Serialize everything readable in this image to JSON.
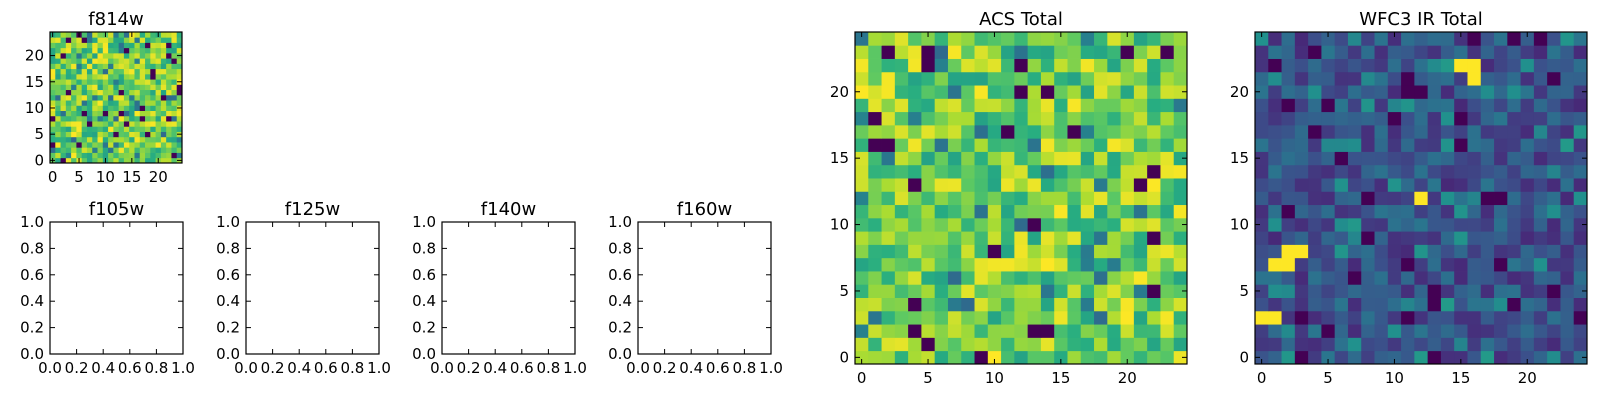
{
  "chart_data": [
    {
      "id": "f814w",
      "type": "heatmap",
      "title": "f814w",
      "xlabel": "",
      "ylabel": "",
      "xlim": [
        -0.5,
        24.5
      ],
      "ylim": [
        -0.5,
        24.5
      ],
      "xticks": [
        0,
        5,
        10,
        15,
        20
      ],
      "xtick_labels": [
        "0",
        "5",
        "10",
        "15",
        "20"
      ],
      "yticks": [
        0,
        5,
        10,
        15,
        20
      ],
      "ytick_labels": [
        "0",
        "5",
        "10",
        "15",
        "20"
      ],
      "grid": false,
      "legend": "none",
      "colormap": "viridis",
      "data_shape": [
        25,
        25
      ],
      "data_summary": "random pixel noise, mostly high (yellow-green) values with sparse low (dark purple) pixels",
      "seed": 814,
      "profile": "high"
    },
    {
      "id": "f105w",
      "type": "heatmap",
      "title": "f105w",
      "xlabel": "",
      "ylabel": "",
      "xlim": [
        0.0,
        1.0
      ],
      "ylim": [
        0.0,
        1.0
      ],
      "xticks": [
        0.0,
        0.2,
        0.4,
        0.6,
        0.8,
        1.0
      ],
      "xtick_labels": [
        "0.0",
        "0.2",
        "0.4",
        "0.6",
        "0.8",
        "1.0"
      ],
      "yticks": [
        0.0,
        0.2,
        0.4,
        0.6,
        0.8,
        1.0
      ],
      "ytick_labels": [
        "0.0",
        "0.2",
        "0.4",
        "0.6",
        "0.8",
        "1.0"
      ],
      "grid": false,
      "legend": "none",
      "empty": true
    },
    {
      "id": "f125w",
      "type": "heatmap",
      "title": "f125w",
      "xlabel": "",
      "ylabel": "",
      "xlim": [
        0.0,
        1.0
      ],
      "ylim": [
        0.0,
        1.0
      ],
      "xticks": [
        0.0,
        0.2,
        0.4,
        0.6,
        0.8,
        1.0
      ],
      "xtick_labels": [
        "0.0",
        "0.2",
        "0.4",
        "0.6",
        "0.8",
        "1.0"
      ],
      "yticks": [
        0.0,
        0.2,
        0.4,
        0.6,
        0.8,
        1.0
      ],
      "ytick_labels": [
        "0.0",
        "0.2",
        "0.4",
        "0.6",
        "0.8",
        "1.0"
      ],
      "grid": false,
      "legend": "none",
      "empty": true
    },
    {
      "id": "f140w",
      "type": "heatmap",
      "title": "f140w",
      "xlabel": "",
      "ylabel": "",
      "xlim": [
        0.0,
        1.0
      ],
      "ylim": [
        0.0,
        1.0
      ],
      "xticks": [
        0.0,
        0.2,
        0.4,
        0.6,
        0.8,
        1.0
      ],
      "xtick_labels": [
        "0.0",
        "0.2",
        "0.4",
        "0.6",
        "0.8",
        "1.0"
      ],
      "yticks": [
        0.0,
        0.2,
        0.4,
        0.6,
        0.8,
        1.0
      ],
      "ytick_labels": [
        "0.0",
        "0.2",
        "0.4",
        "0.6",
        "0.8",
        "1.0"
      ],
      "grid": false,
      "legend": "none",
      "empty": true
    },
    {
      "id": "f160w",
      "type": "heatmap",
      "title": "f160w",
      "xlabel": "",
      "ylabel": "",
      "xlim": [
        0.0,
        1.0
      ],
      "ylim": [
        0.0,
        1.0
      ],
      "xticks": [
        0.0,
        0.2,
        0.4,
        0.6,
        0.8,
        1.0
      ],
      "xtick_labels": [
        "0.0",
        "0.2",
        "0.4",
        "0.6",
        "0.8",
        "1.0"
      ],
      "yticks": [
        0.0,
        0.2,
        0.4,
        0.6,
        0.8,
        1.0
      ],
      "ytick_labels": [
        "0.0",
        "0.2",
        "0.4",
        "0.6",
        "0.8",
        "1.0"
      ],
      "grid": false,
      "legend": "none",
      "empty": true
    },
    {
      "id": "acs_total",
      "type": "heatmap",
      "title": "ACS Total",
      "xlabel": "",
      "ylabel": "",
      "xlim": [
        -0.5,
        24.5
      ],
      "ylim": [
        -0.5,
        24.5
      ],
      "xticks": [
        0,
        5,
        10,
        15,
        20
      ],
      "xtick_labels": [
        "0",
        "5",
        "10",
        "15",
        "20"
      ],
      "yticks": [
        0,
        5,
        10,
        15,
        20
      ],
      "ytick_labels": [
        "0",
        "5",
        "10",
        "15",
        "20"
      ],
      "grid": false,
      "legend": "none",
      "colormap": "viridis",
      "data_shape": [
        25,
        25
      ],
      "data_summary": "random pixel noise, mostly high (green-yellow) values with a few low (dark purple) pixels",
      "seed": 2024,
      "profile": "high"
    },
    {
      "id": "wfc3_ir_total",
      "type": "heatmap",
      "title": "WFC3 IR Total",
      "xlabel": "",
      "ylabel": "",
      "xlim": [
        -0.5,
        24.5
      ],
      "ylim": [
        -0.5,
        24.5
      ],
      "xticks": [
        0,
        5,
        10,
        15,
        20
      ],
      "xtick_labels": [
        "0",
        "5",
        "10",
        "15",
        "20"
      ],
      "yticks": [
        0,
        5,
        10,
        15,
        20
      ],
      "ytick_labels": [
        "0",
        "5",
        "10",
        "15",
        "20"
      ],
      "grid": false,
      "legend": "none",
      "colormap": "viridis",
      "data_shape": [
        25,
        25
      ],
      "data_summary": "random pixel noise, mostly low-mid (blue) values with a few bright (yellow) outliers",
      "seed": 3160,
      "profile": "low",
      "bright_pixels": [
        {
          "x": 15,
          "y": 22
        },
        {
          "x": 16,
          "y": 22
        },
        {
          "x": 16,
          "y": 21
        },
        {
          "x": 12,
          "y": 12
        },
        {
          "x": 2,
          "y": 8
        },
        {
          "x": 3,
          "y": 8
        },
        {
          "x": 1,
          "y": 7
        },
        {
          "x": 2,
          "y": 7
        },
        {
          "x": 0,
          "y": 3
        },
        {
          "x": 1,
          "y": 3
        }
      ]
    }
  ]
}
